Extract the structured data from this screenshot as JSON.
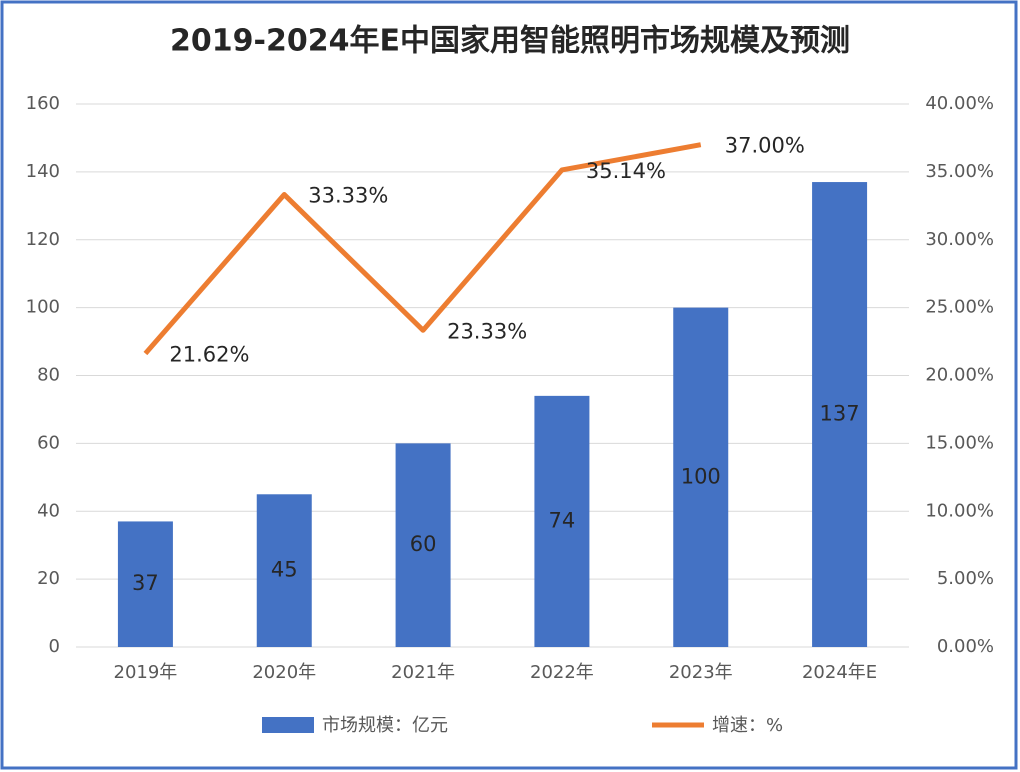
{
  "chart_data": {
    "type": "bar-line",
    "title": "2019-2024年E中国家用智能照明市场规模及预测",
    "categories": [
      "2019年",
      "2020年",
      "2021年",
      "2022年",
      "2023年",
      "2024年E"
    ],
    "series": [
      {
        "name": "市场规模：亿元",
        "type": "bar",
        "color": "#4472c4",
        "values": [
          37,
          45,
          60,
          74,
          100,
          137
        ]
      },
      {
        "name": "增速：%",
        "type": "line",
        "axis": "y2",
        "color": "#ed7d31",
        "values": [
          21.62,
          33.33,
          23.33,
          35.14,
          37.0,
          null
        ],
        "value_labels": [
          "21.62%",
          "33.33%",
          "23.33%",
          "35.14%",
          "37.00%",
          null
        ]
      }
    ],
    "ylim": [
      0,
      160
    ],
    "yticks": [
      0,
      20,
      40,
      60,
      80,
      100,
      120,
      140,
      160
    ],
    "y2lim": [
      0,
      40
    ],
    "y2ticks": [
      {
        "value": 0,
        "label": "0.00%"
      },
      {
        "value": 5,
        "label": "5.00%"
      },
      {
        "value": 10,
        "label": "10.00%"
      },
      {
        "value": 15,
        "label": "15.00%"
      },
      {
        "value": 20,
        "label": "20.00%"
      },
      {
        "value": 25,
        "label": "25.00%"
      },
      {
        "value": 30,
        "label": "30.00%"
      },
      {
        "value": 35,
        "label": "35.00%"
      },
      {
        "value": 40,
        "label": "40.00%"
      }
    ],
    "grid": true,
    "legend": "bottom"
  }
}
